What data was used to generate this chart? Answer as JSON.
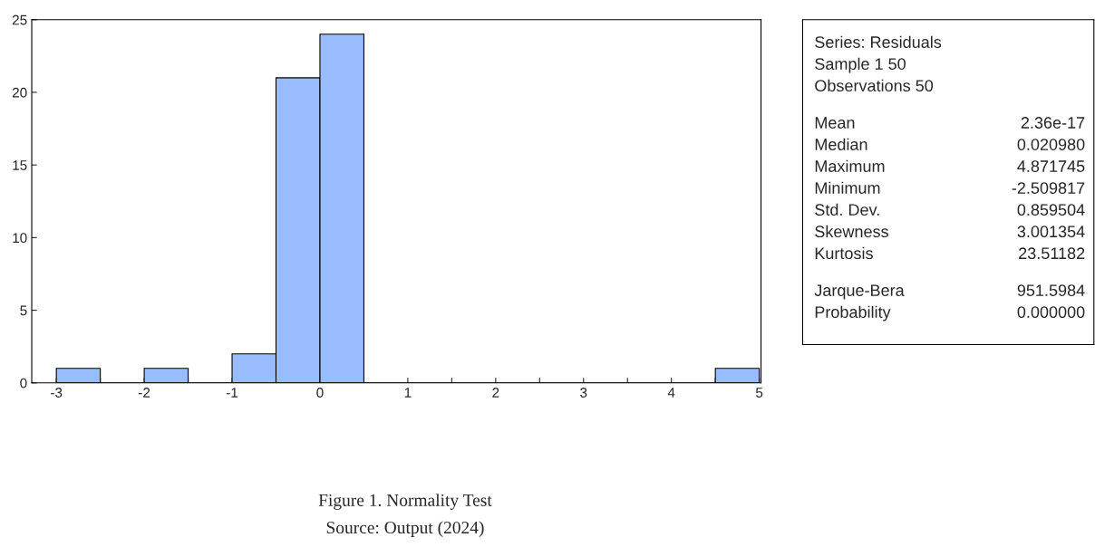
{
  "chart_data": [
    {
      "type": "histogram",
      "title": "Figure 1. Normality Test",
      "bins": [
        -3,
        -2.5,
        -2,
        -1.5,
        -1,
        -0.5,
        0,
        0.5,
        1,
        1.5,
        2,
        2.5,
        3,
        3.5,
        4,
        4.5,
        5
      ],
      "values": [
        1,
        0,
        1,
        0,
        2,
        21,
        24,
        0,
        0,
        0,
        0,
        0,
        0,
        0,
        0,
        1
      ],
      "color": "#99bbff",
      "xlim": [
        -3.28,
        5.02
      ],
      "xticks": [
        -3,
        {
          "value": -2.5,
          "label": null
        },
        -2,
        {
          "value": -1.5,
          "label": null
        },
        -1,
        {
          "value": -0.5,
          "label": null
        },
        0,
        {
          "value": 0.5,
          "label": null
        },
        1,
        {
          "value": 1.5,
          "label": null
        },
        2,
        {
          "value": 2.5,
          "label": null
        },
        3,
        {
          "value": 3.5,
          "label": null
        },
        4,
        {
          "value": 4.5,
          "label": null
        },
        5
      ],
      "ylim": [
        0,
        25
      ],
      "yticks": [
        0,
        5,
        10,
        15,
        20,
        25
      ],
      "grid": false,
      "legend": false,
      "annotations": [
        "Source: Output (2024)"
      ]
    },
    {
      "type": "other",
      "annotations": [
        "Series: Residuals",
        "Sample 1 50",
        "Observations 50"
      ],
      "categories": [
        "Mean",
        "Median",
        "Maximum",
        "Minimum",
        "Std. Dev.",
        "Skewness",
        "Kurtosis",
        "Jarque-Bera",
        "Probability"
      ],
      "values": [
        2.36e-17,
        0.02098,
        4.871745,
        -2.509817,
        0.859504,
        3.001354,
        23.51182,
        951.5984,
        0.0
      ],
      "value_labels": [
        "2.36e-17",
        "0.020980",
        "4.871745",
        "-2.509817",
        "0.859504",
        "3.001354",
        "23.51182",
        "951.5984",
        "0.000000"
      ]
    }
  ]
}
